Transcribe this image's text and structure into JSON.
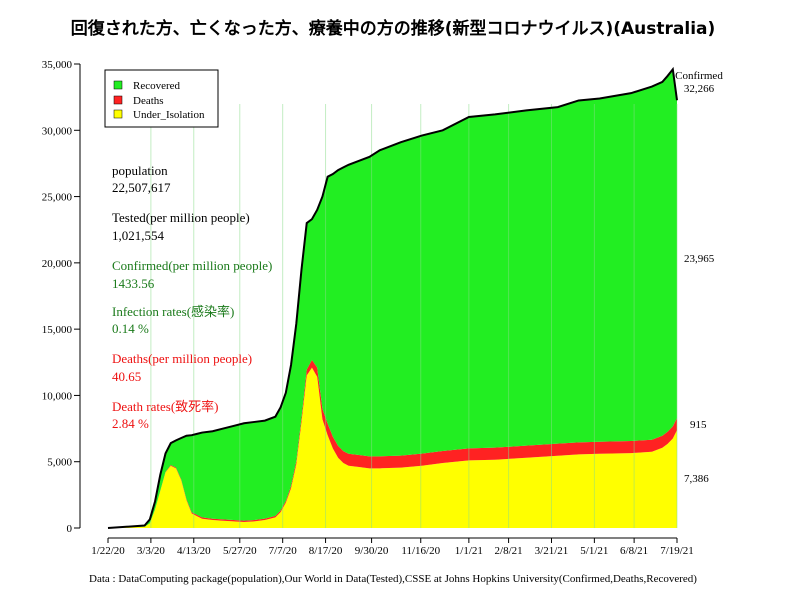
{
  "chart_data": {
    "type": "area",
    "title": "回復された方、亡くなった方、療養中の方の推移(新型コロナウイルス)(Australia)",
    "source_note": "Data : DataComputing package(population),Our World in Data(Tested),CSSE at Johns Hopkins University(Confirmed,Deaths,Recovered)",
    "ylim": [
      0,
      35000
    ],
    "y_ticks": [
      0,
      5000,
      10000,
      15000,
      20000,
      25000,
      30000,
      35000
    ],
    "y_tick_labels": [
      "0",
      "5,000",
      "10,000",
      "15,000",
      "20,000",
      "25,000",
      "30,000",
      "35,000"
    ],
    "x_range_days": [
      0,
      544
    ],
    "x_tick_labels": [
      "1/22/20",
      "3/3/20",
      "4/13/20",
      "5/27/20",
      "7/7/20",
      "8/17/20",
      "9/30/20",
      "11/16/20",
      "1/1/21",
      "2/8/21",
      "3/21/21",
      "5/1/21",
      "6/8/21",
      "7/19/21"
    ],
    "x_tick_days": [
      0,
      41,
      82,
      126,
      167,
      208,
      252,
      299,
      345,
      383,
      424,
      465,
      503,
      544
    ],
    "legend": {
      "placement": "top-left",
      "entries": [
        {
          "label": "Recovered",
          "color": "#22ee22"
        },
        {
          "label": "Deaths",
          "color": "#ff2222"
        },
        {
          "label": "Under_Isolation",
          "color": "#ffff00"
        }
      ]
    },
    "colors": {
      "recovered": "#22ee22",
      "deaths": "#ff2222",
      "isolation": "#ffff00",
      "confirmed_line": "#000000",
      "gridline": "#88dd88"
    },
    "x_days": [
      0,
      35,
      40,
      45,
      50,
      55,
      60,
      65,
      70,
      75,
      80,
      85,
      90,
      100,
      110,
      120,
      130,
      140,
      150,
      160,
      165,
      170,
      175,
      180,
      185,
      190,
      195,
      200,
      205,
      210,
      215,
      220,
      225,
      230,
      240,
      250,
      260,
      280,
      300,
      320,
      345,
      370,
      400,
      430,
      450,
      470,
      500,
      520,
      530,
      535,
      540,
      544
    ],
    "series": [
      {
        "name": "Under_Isolation",
        "values": [
          0,
          100,
          350,
          1400,
          2800,
          4200,
          4700,
          4500,
          3600,
          2100,
          1100,
          900,
          700,
          600,
          550,
          500,
          450,
          500,
          600,
          800,
          1200,
          1900,
          3000,
          4800,
          8000,
          11500,
          12100,
          11400,
          8200,
          7000,
          6000,
          5300,
          4900,
          4700,
          4600,
          4500,
          4500,
          4550,
          4700,
          4900,
          5100,
          5150,
          5300,
          5450,
          5550,
          5600,
          5650,
          5750,
          6050,
          6350,
          6750,
          7386
        ]
      },
      {
        "name": "Deaths",
        "values": [
          0,
          0,
          0,
          10,
          20,
          30,
          50,
          60,
          70,
          80,
          90,
          95,
          100,
          102,
          103,
          104,
          104,
          104,
          105,
          110,
          120,
          140,
          180,
          240,
          330,
          450,
          580,
          700,
          800,
          860,
          880,
          895,
          900,
          903,
          905,
          907,
          907,
          907,
          908,
          909,
          909,
          909,
          909,
          910,
          910,
          910,
          910,
          910,
          911,
          912,
          913,
          915
        ]
      },
      {
        "name": "Recovered",
        "values": [
          0,
          90,
          300,
          600,
          1200,
          1400,
          1650,
          2050,
          3120,
          4780,
          5810,
          6105,
          6400,
          6598,
          6847,
          7096,
          7346,
          7396,
          7395,
          7490,
          7780,
          8160,
          9120,
          10360,
          11170,
          11050,
          10620,
          11900,
          16000,
          18640,
          19820,
          20805,
          21400,
          21800,
          22195,
          22593,
          23093,
          23643,
          23992,
          24191,
          24991,
          25141,
          25291,
          25390,
          25790,
          25890,
          26240,
          26640,
          26689,
          26838,
          26937,
          23965
        ]
      }
    ],
    "confirmed": {
      "name": "Confirmed",
      "values": [
        0,
        190,
        650,
        2010,
        4020,
        5630,
        6400,
        6610,
        6790,
        6960,
        7000,
        7100,
        7200,
        7300,
        7500,
        7700,
        7900,
        8000,
        8100,
        8400,
        9100,
        10200,
        12300,
        15400,
        19500,
        23000,
        23300,
        24000,
        25000,
        26500,
        26700,
        27000,
        27200,
        27400,
        27700,
        28000,
        28500,
        29100,
        29600,
        30000,
        31000,
        31200,
        31500,
        31750,
        32250,
        32400,
        32800,
        33300,
        33650,
        34100,
        34600,
        32266
      ]
    },
    "end_labels": {
      "confirmed_label": "Confirmed",
      "confirmed_value": "32,266",
      "recovered_value": "23,965",
      "deaths_value": "915",
      "isolation_value": "7,386"
    },
    "stats": [
      {
        "label": "population",
        "value": "22,507,617",
        "color": "#000000"
      },
      {
        "label": "Tested(per million people)",
        "value": "1,021,554",
        "color": "#000000"
      },
      {
        "label": "Confirmed(per million people)",
        "value": "1433.56",
        "color": "#1a7a1a"
      },
      {
        "label": "Infection rates(感染率)",
        "value": "0.14 %",
        "color": "#1a7a1a"
      },
      {
        "label": "Deaths(per million people)",
        "value": "40.65",
        "color": "#ee1111"
      },
      {
        "label": "Death rates(致死率)",
        "value": "2.84 %",
        "color": "#ee1111"
      }
    ]
  }
}
